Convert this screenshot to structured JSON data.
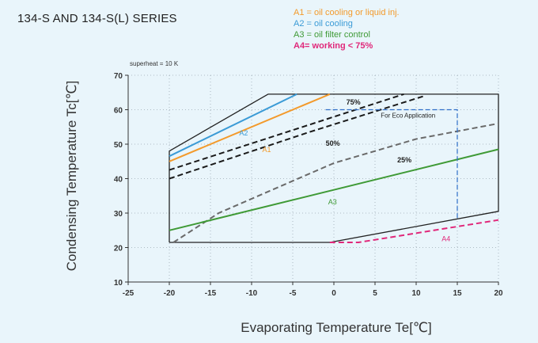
{
  "title": "134-S AND 134-S(L) SERIES",
  "legend": [
    {
      "key": "A1",
      "text": "A1 = oil cooling or liquid inj.",
      "color": "#f39a2b"
    },
    {
      "key": "A2",
      "text": "A2 = oil cooling",
      "color": "#3b9bd6"
    },
    {
      "key": "A3",
      "text": "A3 = oil filter control",
      "color": "#3f9a36"
    },
    {
      "key": "A4",
      "text": "A4= working < 75%",
      "color": "#e0287a"
    }
  ],
  "chart_data": {
    "type": "line",
    "xlabel": "Evaporating Temperature Te[℃]",
    "ylabel": "Condensing Temperature Tc[℃]",
    "xlim": [
      -25,
      20
    ],
    "ylim": [
      10,
      70
    ],
    "x_ticks": [
      -25,
      -20,
      -15,
      -10,
      -5,
      0,
      5,
      10,
      15,
      20
    ],
    "x_tick_labels": [
      "-25",
      "-20",
      "-15",
      "-10",
      "-5",
      "0",
      "5",
      "10",
      "15",
      "20"
    ],
    "y_ticks": [
      10,
      20,
      30,
      40,
      50,
      60,
      70
    ],
    "y_tick_labels": [
      "10",
      "20",
      "30",
      "40",
      "50",
      "60",
      "70"
    ],
    "grid": "dotted",
    "annotation": "superheat = 10 K",
    "series": [
      {
        "name": "envelope",
        "style": "solid",
        "color": "#222222",
        "points": [
          [
            -20,
            21.5
          ],
          [
            -20,
            48
          ],
          [
            -8,
            64.5
          ],
          [
            20,
            64.5
          ],
          [
            20,
            30.5
          ],
          [
            -0.5,
            21.5
          ],
          [
            -20,
            21.5
          ]
        ]
      },
      {
        "name": "A2",
        "label": "A2",
        "style": "solid",
        "color": "#3b9bd6",
        "points": [
          [
            -20,
            46.5
          ],
          [
            -4.5,
            64.5
          ]
        ],
        "label_at": [
          -11.5,
          52.5
        ]
      },
      {
        "name": "A1",
        "label": "A1",
        "style": "solid",
        "color": "#f39a2b",
        "points": [
          [
            -20,
            45
          ],
          [
            -0.5,
            64.5
          ]
        ],
        "label_at": [
          -8.7,
          47.7
        ]
      },
      {
        "name": "75%",
        "label": "75%",
        "style": "dashed",
        "color": "#1a1a1a",
        "points": [
          [
            -20,
            42.5
          ],
          [
            8.5,
            64.5
          ]
        ],
        "label_at": [
          1.5,
          61.5
        ]
      },
      {
        "name": "50%",
        "label": "50%",
        "style": "dashed",
        "color": "#1a1a1a",
        "points": [
          [
            -20,
            40
          ],
          [
            -3,
            53.5
          ],
          [
            11,
            64
          ]
        ],
        "label_at": [
          -1,
          49.5
        ]
      },
      {
        "name": "25%",
        "label": "25%",
        "style": "dashed",
        "color": "#6a6a6a",
        "points": [
          [
            -19.5,
            21.5
          ],
          [
            -14,
            30
          ],
          [
            0,
            44.5
          ],
          [
            10,
            51.5
          ],
          [
            20,
            56
          ]
        ],
        "label_at": [
          7.7,
          44.7
        ]
      },
      {
        "name": "A3",
        "label": "A3",
        "style": "solid",
        "color": "#3f9a36",
        "points": [
          [
            -20,
            25
          ],
          [
            20,
            48.5
          ]
        ],
        "label_at": [
          -0.7,
          32.5
        ]
      },
      {
        "name": "A4",
        "label": "A4",
        "style": "dashed",
        "color": "#e0287a",
        "points": [
          [
            -0.5,
            21.5
          ],
          [
            3,
            21.5
          ],
          [
            20,
            28
          ]
        ],
        "label_at": [
          13.1,
          21.8
        ]
      },
      {
        "name": "Eco boundary",
        "style": "dashed",
        "color": "#2f6fc9",
        "points": [
          [
            -1,
            60
          ],
          [
            15,
            60
          ],
          [
            15,
            28.5
          ]
        ]
      }
    ],
    "region_label": {
      "text": "For Eco Application",
      "at": [
        5.7,
        57.7
      ]
    }
  }
}
